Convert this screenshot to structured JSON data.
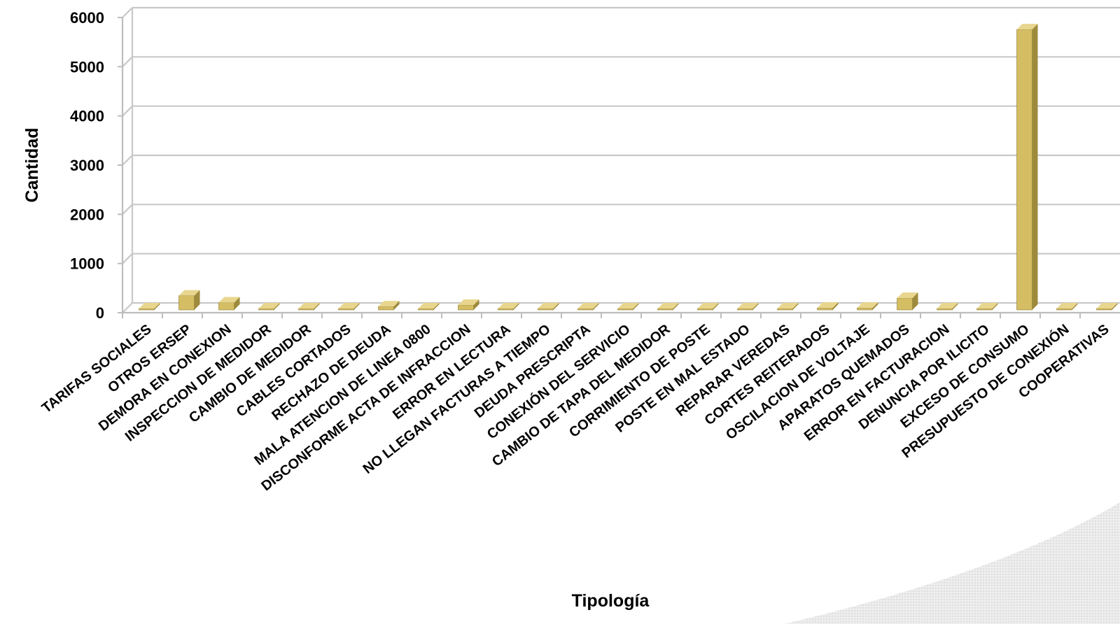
{
  "chart_data": {
    "type": "bar",
    "title": "",
    "xlabel": "Tipología",
    "ylabel": "Cantidad",
    "ylim": [
      0,
      6000
    ],
    "yticks": [
      0,
      1000,
      2000,
      3000,
      4000,
      5000,
      6000
    ],
    "grid": true,
    "legend": "none",
    "bar_color": "#d4bd63",
    "bar_side_color": "#9e8a3c",
    "bar_top_color": "#e8d68e",
    "categories": [
      "TARIFAS SOCIALES",
      "OTROS ERSEP",
      "DEMORA EN CONEXION",
      "INSPECCION DE MEDIDOR",
      "CAMBIO DE MEDIDOR",
      "CABLES CORTADOS",
      "RECHAZO DE DEUDA",
      "MALA ATENCION DE LINEA 0800",
      "DISCONFORME ACTA DE INFRACCION",
      "ERROR EN LECTURA",
      "NO LLEGAN FACTURAS A TIEMPO",
      "DEUDA PRESCRIPTA",
      "CONEXIÓN DEL SERVICIO",
      "CAMBIO DE TAPA DEL MEDIDOR",
      "CORRIMIENTO DE POSTE",
      "POSTE EN MAL ESTADO",
      "REPARAR VEREDAS",
      "CORTES REITERADOS",
      "OSCILACION DE VOLTAJE",
      "APARATOS QUEMADOS",
      "ERROR EN FACTURACION",
      "DENUNCIA POR ILICITO",
      "EXCESO DE CONSUMO",
      "PRESUPUESTO DE CONEXIÓN",
      "COOPERATIVAS"
    ],
    "values": [
      3,
      290,
      150,
      4,
      6,
      5,
      70,
      4,
      100,
      8,
      30,
      8,
      10,
      5,
      5,
      6,
      6,
      40,
      40,
      240,
      10,
      5,
      5700,
      6,
      3
    ]
  }
}
